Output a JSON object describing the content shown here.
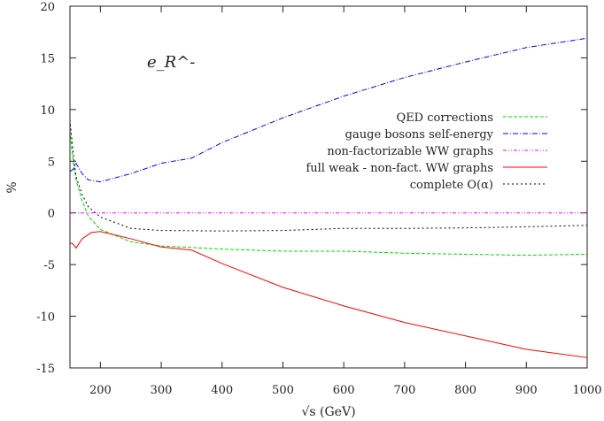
{
  "chart_data": {
    "type": "line",
    "title": "",
    "xlabel": "√s (GeV)",
    "ylabel": "%",
    "annotation": "e_R^-",
    "xlim": [
      150,
      1000
    ],
    "ylim": [
      -15,
      20
    ],
    "xticks": [
      200,
      300,
      400,
      500,
      600,
      700,
      800,
      900,
      1000
    ],
    "yticks": [
      -15,
      -10,
      -5,
      0,
      5,
      10,
      15,
      20
    ],
    "grid": false,
    "legend_placement": "center-right",
    "series": [
      {
        "name": "QED corrections",
        "color": "#00dd00",
        "dash": "dashed",
        "x": [
          150,
          155,
          160,
          170,
          180,
          200,
          250,
          300,
          400,
          500,
          600,
          700,
          800,
          900,
          1000
        ],
        "y": [
          8,
          5,
          3.2,
          1.2,
          -0.3,
          -1.6,
          -2.8,
          -3.2,
          -3.5,
          -3.7,
          -3.7,
          -3.9,
          -4.0,
          -4.1,
          -4.0
        ]
      },
      {
        "name": "gauge bosons self-energy",
        "color": "#0000ff",
        "dash": "dashdot",
        "x": [
          150,
          155,
          160,
          170,
          180,
          200,
          250,
          300,
          350,
          400,
          500,
          600,
          700,
          800,
          900,
          1000
        ],
        "y": [
          4,
          4.2,
          4.8,
          3.8,
          3.2,
          3.0,
          3.8,
          4.8,
          5.3,
          6.8,
          9.2,
          11.3,
          13.1,
          14.6,
          16.0,
          16.9
        ]
      },
      {
        "name": "non-factorizable WW graphs",
        "color": "#ff00ff",
        "dash": "dashdotdot",
        "x": [
          150,
          1000
        ],
        "y": [
          0,
          0
        ]
      },
      {
        "name": "full weak - non-fact. WW graphs",
        "color": "#ff0000",
        "dash": "solid",
        "x": [
          150,
          155,
          160,
          170,
          185,
          200,
          250,
          300,
          350,
          400,
          500,
          600,
          700,
          800,
          900,
          1000
        ],
        "y": [
          -2.9,
          -3.0,
          -3.4,
          -2.5,
          -1.9,
          -1.8,
          -2.5,
          -3.3,
          -3.6,
          -4.9,
          -7.2,
          -9.0,
          -10.6,
          -11.9,
          -13.2,
          -14.0
        ]
      },
      {
        "name": "complete O(α)",
        "color": "#000000",
        "dash": "dotted",
        "x": [
          150,
          155,
          160,
          170,
          180,
          200,
          250,
          300,
          400,
          500,
          600,
          700,
          800,
          900,
          1000
        ],
        "y": [
          9,
          6,
          3.5,
          1.8,
          0.6,
          -0.4,
          -1.5,
          -1.7,
          -1.75,
          -1.7,
          -1.5,
          -1.5,
          -1.45,
          -1.35,
          -1.2
        ]
      }
    ]
  }
}
